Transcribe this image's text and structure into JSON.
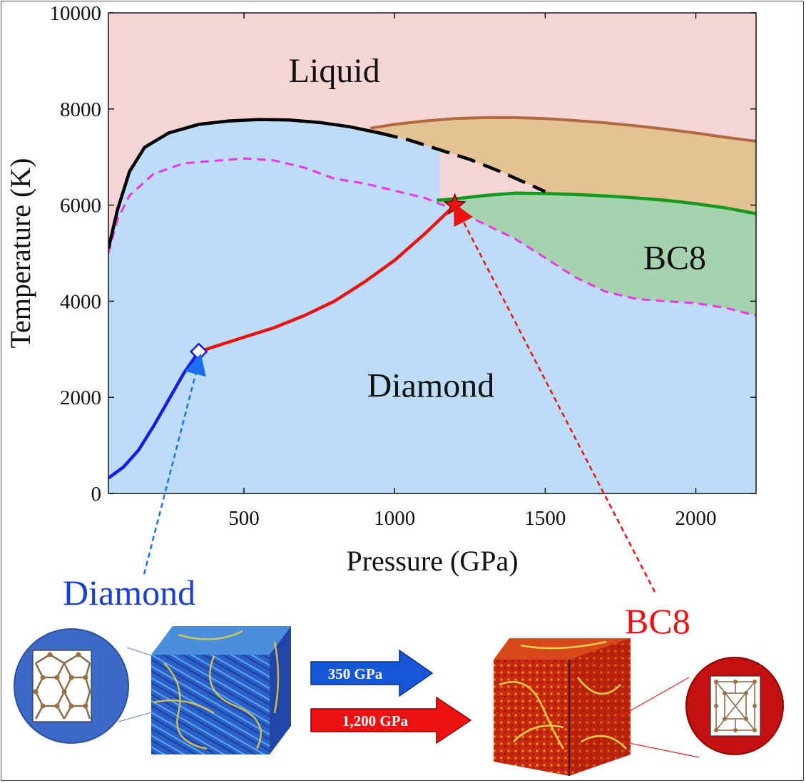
{
  "chart_data": {
    "type": "line",
    "xlabel": "Pressure (GPa)",
    "ylabel": "Temperature (K)",
    "xlim": [
      50,
      2200
    ],
    "ylim": [
      0,
      10000
    ],
    "xticks": [
      500,
      1000,
      1500,
      2000
    ],
    "yticks": [
      0,
      2000,
      4000,
      6000,
      8000,
      10000
    ],
    "region_labels": [
      {
        "text": "Liquid",
        "x": 800,
        "y": 8800
      },
      {
        "text": "BC8",
        "x": 1930,
        "y": 4900
      },
      {
        "text": "Diamond",
        "x": 1120,
        "y": 2250
      }
    ],
    "colors": {
      "liquid": "#f5d5d6",
      "diamond": "#bcdcf7",
      "bc8": "#a6d2b0",
      "tan": "#e4c294",
      "melt_line": "#000000",
      "dashed_pink": "#ee33ee",
      "red_path": "#ee1111",
      "blue_path": "#1a1aee",
      "brown_line": "#b3693f",
      "green_line": "#159a1e"
    },
    "series": [
      {
        "key": "melt_solid",
        "values": [
          [
            50,
            5100
          ],
          [
            80,
            5900
          ],
          [
            120,
            6700
          ],
          [
            170,
            7200
          ],
          [
            250,
            7500
          ],
          [
            350,
            7680
          ],
          [
            450,
            7750
          ],
          [
            550,
            7780
          ],
          [
            650,
            7770
          ],
          [
            750,
            7720
          ],
          [
            850,
            7630
          ],
          [
            950,
            7500
          ]
        ]
      },
      {
        "key": "melt_dashed",
        "values": [
          [
            950,
            7500
          ],
          [
            1050,
            7350
          ],
          [
            1150,
            7150
          ],
          [
            1250,
            6950
          ],
          [
            1350,
            6700
          ],
          [
            1450,
            6420
          ],
          [
            1500,
            6280
          ]
        ]
      },
      {
        "key": "brown",
        "values": [
          [
            920,
            7600
          ],
          [
            1000,
            7680
          ],
          [
            1100,
            7750
          ],
          [
            1200,
            7800
          ],
          [
            1300,
            7820
          ],
          [
            1400,
            7820
          ],
          [
            1500,
            7800
          ],
          [
            1600,
            7760
          ],
          [
            1700,
            7710
          ],
          [
            1800,
            7650
          ],
          [
            1900,
            7580
          ],
          [
            2000,
            7500
          ],
          [
            2100,
            7410
          ],
          [
            2200,
            7330
          ]
        ]
      },
      {
        "key": "green",
        "values": [
          [
            1140,
            6100
          ],
          [
            1200,
            6130
          ],
          [
            1300,
            6200
          ],
          [
            1400,
            6250
          ],
          [
            1500,
            6240
          ],
          [
            1600,
            6220
          ],
          [
            1700,
            6190
          ],
          [
            1800,
            6150
          ],
          [
            1900,
            6100
          ],
          [
            2000,
            6030
          ],
          [
            2100,
            5940
          ],
          [
            2200,
            5820
          ]
        ]
      },
      {
        "key": "pink_dashed",
        "values": [
          [
            50,
            5000
          ],
          [
            80,
            5700
          ],
          [
            120,
            6200
          ],
          [
            200,
            6650
          ],
          [
            300,
            6870
          ],
          [
            400,
            6920
          ],
          [
            500,
            6970
          ],
          [
            600,
            6930
          ],
          [
            700,
            6780
          ],
          [
            800,
            6550
          ],
          [
            900,
            6450
          ],
          [
            1000,
            6300
          ],
          [
            1100,
            6150
          ],
          [
            1200,
            5900
          ],
          [
            1300,
            5600
          ],
          [
            1400,
            5300
          ],
          [
            1500,
            4900
          ],
          [
            1600,
            4500
          ],
          [
            1700,
            4200
          ],
          [
            1800,
            4050
          ],
          [
            1900,
            4000
          ],
          [
            2000,
            3960
          ],
          [
            2100,
            3860
          ],
          [
            2200,
            3700
          ]
        ]
      },
      {
        "key": "red_path",
        "values": [
          [
            350,
            2950
          ],
          [
            400,
            3050
          ],
          [
            500,
            3250
          ],
          [
            600,
            3450
          ],
          [
            700,
            3700
          ],
          [
            800,
            4000
          ],
          [
            900,
            4400
          ],
          [
            1000,
            4850
          ],
          [
            1100,
            5400
          ],
          [
            1150,
            5700
          ],
          [
            1200,
            6000
          ]
        ]
      },
      {
        "key": "blue_path",
        "values": [
          [
            50,
            320
          ],
          [
            100,
            550
          ],
          [
            150,
            900
          ],
          [
            200,
            1400
          ],
          [
            250,
            1950
          ],
          [
            300,
            2500
          ],
          [
            350,
            2950
          ]
        ]
      }
    ],
    "markers": [
      {
        "key": "diamond_start",
        "shape": "diamond",
        "x": 350,
        "y": 2950
      },
      {
        "key": "bc8_star",
        "shape": "star",
        "x": 1200,
        "y": 6000
      }
    ]
  },
  "captions": {
    "diamond": "Diamond",
    "bc8": "BC8"
  },
  "arrows": {
    "blue_label": "350 GPa",
    "red_label": "1,200 GPa"
  }
}
